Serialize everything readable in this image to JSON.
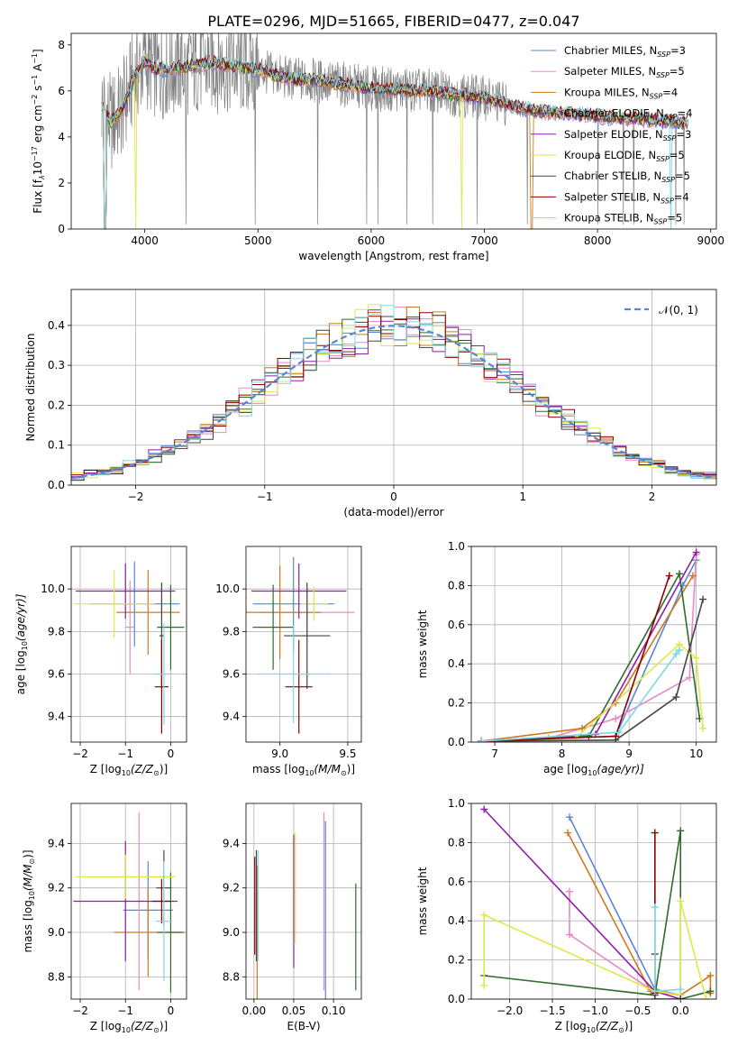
{
  "figure": {
    "title": "PLATE=0296, MJD=51665, FIBERID=0477, z=0.047"
  },
  "colors": {
    "Chabrier MILES": "#5b84d6",
    "Salpeter MILES": "#e88bc4",
    "Kroupa MILES": "#cd7a1f",
    "Chabrier ELODIE": "#2e6b2e",
    "Salpeter ELODIE": "#8e1fa8",
    "Kroupa ELODIE": "#dfe84a",
    "Chabrier STELIB": "#444444",
    "Salpeter STELIB": "#8b0000",
    "Kroupa STELIB": "#7fd8e0",
    "data": "#808080",
    "gaussian": "#5b84d6"
  },
  "chart_data": [
    {
      "id": "spectrum",
      "type": "line",
      "xlabel": "wavelength [Angstrom, rest frame]",
      "ylabel": "Flux [f",
      "xlim": [
        3350,
        9050
      ],
      "ylim": [
        0,
        8.5
      ],
      "xticks": [
        4000,
        5000,
        6000,
        7000,
        8000,
        9000
      ],
      "yticks": [
        0,
        2,
        4,
        6,
        8
      ],
      "grid": false,
      "legend_position": "top-right",
      "legend": [
        {
          "label": "Chabrier MILES, N",
          "n": "3"
        },
        {
          "label": "Salpeter MILES, N",
          "n": "5"
        },
        {
          "label": "Kroupa MILES, N",
          "n": "4"
        },
        {
          "label": "Chabrier ELODIE, N",
          "n": "4"
        },
        {
          "label": "Salpeter ELODIE, N",
          "n": "3"
        },
        {
          "label": "Kroupa ELODIE, N",
          "n": "5"
        },
        {
          "label": "Chabrier STELIB, N",
          "n": "5"
        },
        {
          "label": "Salpeter STELIB, N",
          "n": "4"
        },
        {
          "label": "Kroupa STELIB, N",
          "n": "5"
        }
      ],
      "continuum_knots": {
        "x": [
          3620,
          3700,
          3800,
          3900,
          4000,
          4100,
          4300,
          4600,
          5000,
          5300,
          5600,
          6000,
          6500,
          7000,
          7300,
          7500,
          7800,
          8100,
          8400,
          8800
        ],
        "y": [
          5.4,
          4.6,
          5.2,
          6.5,
          7.3,
          6.9,
          7.0,
          7.2,
          6.9,
          6.5,
          6.4,
          6.1,
          6.0,
          5.7,
          5.3,
          5.1,
          5.0,
          4.85,
          4.75,
          4.6
        ]
      },
      "dips": [
        {
          "x": 3650,
          "model": "all"
        },
        {
          "x": 3920,
          "model": "Kroupa ELODIE"
        },
        {
          "x": 6800,
          "model": "Kroupa ELODIE"
        },
        {
          "x": 7420,
          "model": "Kroupa MILES"
        },
        {
          "x": 8650,
          "model": "Kroupa STELIB"
        }
      ]
    },
    {
      "id": "residuals",
      "type": "histogram",
      "xlabel": "(data-model)/error",
      "ylabel": "Normed distribution",
      "xlim": [
        -2.5,
        2.5
      ],
      "ylim": [
        0,
        0.49
      ],
      "xticks": [
        -2,
        -1,
        0,
        1,
        2
      ],
      "yticks": [
        0,
        0.1,
        0.2,
        0.3,
        0.4
      ],
      "grid": true,
      "legend_position": "top-right",
      "legend": [
        "𝒩(0, 1)"
      ],
      "bins": 50
    },
    {
      "id": "Z-age",
      "type": "errorbar",
      "xlabel": "Z [log",
      "ylabel": "age  [log",
      "xlim": [
        -2.2,
        0.35
      ],
      "ylim": [
        9.28,
        10.2
      ],
      "xticks": [
        -2,
        -1,
        0
      ],
      "yticks": [
        9.4,
        9.6,
        9.8,
        10.0
      ],
      "grid": true,
      "points": [
        {
          "model": "Chabrier MILES",
          "x": -0.8,
          "xerr": 1.0,
          "y": 9.93,
          "yerr": 0.2
        },
        {
          "model": "Salpeter MILES",
          "x": -0.9,
          "xerr": 0.1,
          "y": 9.82,
          "yerr": 0.22
        },
        {
          "model": "Kroupa MILES",
          "x": -0.5,
          "xerr": 0.7,
          "y": 9.89,
          "yerr": 0.2
        },
        {
          "model": "Chabrier ELODIE",
          "x": 0.0,
          "xerr": 0.3,
          "y": 9.82,
          "yerr": 0.2
        },
        {
          "model": "Salpeter ELODIE",
          "x": -1.0,
          "xerr": 1.1,
          "y": 9.99,
          "yerr": 0.13
        },
        {
          "model": "Kroupa ELODIE",
          "x": -1.25,
          "xerr": 0.9,
          "y": 9.93,
          "yerr": 0.16
        },
        {
          "model": "Chabrier STELIB",
          "x": -0.2,
          "xerr": 0.05,
          "y": 9.78,
          "yerr": 0.25
        },
        {
          "model": "Salpeter STELIB",
          "x": -0.2,
          "xerr": 0.15,
          "y": 9.54,
          "yerr": 0.22
        },
        {
          "model": "Kroupa STELIB",
          "x": -0.15,
          "xerr": 0.2,
          "y": 9.6,
          "yerr": 0.24
        }
      ]
    },
    {
      "id": "mass-age",
      "type": "errorbar",
      "xlabel": "mass [log",
      "ylabel": "",
      "xlim": [
        8.75,
        9.6
      ],
      "ylim": [
        9.28,
        10.2
      ],
      "xticks": [
        9.0,
        9.5
      ],
      "yticks": [
        9.4,
        9.6,
        9.8,
        10.0
      ],
      "grid": true,
      "points": [
        {
          "model": "Chabrier MILES",
          "x": 9.1,
          "xerr": 0.3,
          "y": 9.93,
          "yerr": 0.22
        },
        {
          "model": "Salpeter MILES",
          "x": 9.2,
          "xerr": 0.35,
          "y": 9.89,
          "yerr": 0.12
        },
        {
          "model": "Kroupa MILES",
          "x": 9.0,
          "xerr": 0.3,
          "y": 9.89,
          "yerr": 0.22
        },
        {
          "model": "Chabrier ELODIE",
          "x": 8.95,
          "xerr": 0.15,
          "y": 9.82,
          "yerr": 0.2
        },
        {
          "model": "Salpeter ELODIE",
          "x": 9.14,
          "xerr": 0.35,
          "y": 9.99,
          "yerr": 0.13
        },
        {
          "model": "Kroupa ELODIE",
          "x": 9.25,
          "xerr": 0.1,
          "y": 9.93,
          "yerr": 0.08
        },
        {
          "model": "Chabrier STELIB",
          "x": 9.2,
          "xerr": 0.17,
          "y": 9.78,
          "yerr": 0.25
        },
        {
          "model": "Salpeter STELIB",
          "x": 9.14,
          "xerr": 0.1,
          "y": 9.54,
          "yerr": 0.22
        },
        {
          "model": "Kroupa STELIB",
          "x": 9.1,
          "xerr": 0.27,
          "y": 9.6,
          "yerr": 0.23
        }
      ]
    },
    {
      "id": "age-weight",
      "type": "line",
      "xlabel": "age  [log",
      "ylabel": "mass weight",
      "xlim": [
        6.65,
        10.3
      ],
      "ylim": [
        0,
        1.0
      ],
      "xticks": [
        7,
        8,
        9,
        10
      ],
      "yticks": [
        0.0,
        0.2,
        0.4,
        0.6,
        0.8,
        1.0
      ],
      "grid": true,
      "series": [
        {
          "model": "Chabrier MILES",
          "x": [
            6.8,
            8.8,
            9.8,
            10.0
          ],
          "y": [
            0.005,
            0.03,
            0.8,
            0.93
          ]
        },
        {
          "model": "Salpeter MILES",
          "x": [
            6.8,
            7.8,
            8.8,
            9.9,
            10.0
          ],
          "y": [
            0.005,
            0.02,
            0.12,
            0.33,
            0.96
          ]
        },
        {
          "model": "Kroupa MILES",
          "x": [
            6.8,
            8.3,
            8.8,
            9.95
          ],
          "y": [
            0.005,
            0.07,
            0.2,
            0.85
          ]
        },
        {
          "model": "Chabrier ELODIE",
          "x": [
            6.8,
            8.4,
            9.75,
            10.05
          ],
          "y": [
            0.005,
            0.03,
            0.86,
            0.12
          ]
        },
        {
          "model": "Salpeter ELODIE",
          "x": [
            6.8,
            8.5,
            10.0
          ],
          "y": [
            0.005,
            0.04,
            0.97
          ]
        },
        {
          "model": "Kroupa ELODIE",
          "x": [
            6.8,
            8.2,
            9.75,
            10.0,
            10.1
          ],
          "y": [
            0.005,
            0.02,
            0.5,
            0.43,
            0.07
          ]
        },
        {
          "model": "Chabrier STELIB",
          "x": [
            6.8,
            8.8,
            9.7,
            10.1
          ],
          "y": [
            0.005,
            0.01,
            0.23,
            0.73
          ]
        },
        {
          "model": "Salpeter STELIB",
          "x": [
            6.8,
            8.8,
            9.6
          ],
          "y": [
            0.005,
            0.03,
            0.85
          ]
        },
        {
          "model": "Kroupa STELIB",
          "x": [
            6.8,
            8.85,
            9.7,
            9.75
          ],
          "y": [
            0.005,
            0.05,
            0.45,
            0.47
          ]
        }
      ]
    },
    {
      "id": "Z-mass",
      "type": "errorbar",
      "xlabel": "Z [log",
      "ylabel": "mass [log",
      "xlim": [
        -2.2,
        0.35
      ],
      "ylim": [
        8.7,
        9.58
      ],
      "xticks": [
        -2,
        -1,
        0
      ],
      "yticks": [
        8.8,
        9.0,
        9.2,
        9.4
      ],
      "grid": true,
      "points": [
        {
          "model": "Chabrier MILES",
          "x": -0.5,
          "xerr": 0.55,
          "y": 9.1,
          "yerr": 0.22
        },
        {
          "model": "Salpeter MILES",
          "x": -0.7,
          "xerr": 0.1,
          "y": 9.14,
          "yerr": 0.4
        },
        {
          "model": "Kroupa MILES",
          "x": -0.5,
          "xerr": 0.75,
          "y": 9.0,
          "yerr": 0.2
        },
        {
          "model": "Chabrier ELODIE",
          "x": 0.0,
          "xerr": 0.3,
          "y": 9.0,
          "yerr": 0.27
        },
        {
          "model": "Salpeter ELODIE",
          "x": -1.0,
          "xerr": 1.15,
          "y": 9.14,
          "yerr": 0.27
        },
        {
          "model": "Kroupa ELODIE",
          "x": -1.0,
          "xerr": 1.1,
          "y": 9.25,
          "yerr": 0.1
        },
        {
          "model": "Chabrier STELIB",
          "x": -0.15,
          "xerr": 0.17,
          "y": 9.2,
          "yerr": 0.17
        },
        {
          "model": "Salpeter STELIB",
          "x": -0.2,
          "xerr": 0.2,
          "y": 9.14,
          "yerr": 0.1
        },
        {
          "model": "Kroupa STELIB",
          "x": -0.15,
          "xerr": 0.18,
          "y": 9.05,
          "yerr": 0.27
        }
      ]
    },
    {
      "id": "EBV-mass",
      "type": "errorbar",
      "xlabel": "E(B-V)",
      "ylabel": "",
      "xlim": [
        -0.01,
        0.135
      ],
      "ylim": [
        8.7,
        9.58
      ],
      "xticks": [
        0.0,
        0.05,
        0.1
      ],
      "yticks": [
        8.8,
        9.0,
        9.2,
        9.4
      ],
      "grid": true,
      "points": [
        {
          "model": "Chabrier MILES",
          "x": 0.09,
          "xerr": 0,
          "y": 9.1,
          "yerr": 0.4
        },
        {
          "model": "Salpeter MILES",
          "x": 0.088,
          "xerr": 0,
          "y": 9.14,
          "yerr": 0.4
        },
        {
          "model": "Kroupa MILES",
          "x": 0.004,
          "xerr": 0,
          "y": 9.0,
          "yerr": 0.3
        },
        {
          "model": "Chabrier ELODIE",
          "x": 0.128,
          "xerr": 0,
          "y": 8.98,
          "yerr": 0.24
        },
        {
          "model": "Salpeter ELODIE",
          "x": 0.05,
          "xerr": 0,
          "y": 9.14,
          "yerr": 0.3
        },
        {
          "model": "Kroupa ELODIE",
          "x": 0.052,
          "xerr": 0,
          "y": 9.2,
          "yerr": 0.25
        },
        {
          "model": "Chabrier STELIB",
          "x": 0.003,
          "xerr": 0,
          "y": 9.12,
          "yerr": 0.25
        },
        {
          "model": "Salpeter STELIB",
          "x": 0.001,
          "xerr": 0,
          "y": 9.12,
          "yerr": 0.22
        },
        {
          "model": "Kroupa STELIB",
          "x": 0.005,
          "xerr": 0,
          "y": 9.12,
          "yerr": 0.25
        }
      ]
    },
    {
      "id": "Z-weight",
      "type": "line",
      "xlabel": "Z [log",
      "ylabel": "mass weight",
      "xlim": [
        -2.45,
        0.42
      ],
      "ylim": [
        0,
        1.0
      ],
      "xticks": [
        -2.0,
        -1.5,
        -1.0,
        -0.5,
        0.0
      ],
      "yticks": [
        0.0,
        0.2,
        0.4,
        0.6,
        0.8,
        1.0
      ],
      "grid": true,
      "series": [
        {
          "model": "Chabrier MILES",
          "x": [
            -1.3,
            -0.3,
            0.0
          ],
          "y": [
            0.93,
            0.05,
            0.02
          ]
        },
        {
          "model": "Salpeter MILES",
          "x": [
            -1.3,
            -1.3,
            -0.35,
            0.0
          ],
          "y": [
            0.55,
            0.33,
            0.05,
            0.02
          ]
        },
        {
          "model": "Kroupa MILES",
          "x": [
            -1.32,
            -0.35,
            0.0,
            0.35,
            0.35
          ],
          "y": [
            0.85,
            0.04,
            0.02,
            0.12,
            0.03
          ]
        },
        {
          "model": "Chabrier ELODIE",
          "x": [
            -2.3,
            -0.3,
            0.0,
            0.0,
            0.35
          ],
          "y": [
            0.12,
            0.02,
            0.86,
            0.0,
            0.04
          ]
        },
        {
          "model": "Salpeter ELODIE",
          "x": [
            -2.3,
            -0.3,
            0.0
          ],
          "y": [
            0.97,
            0.04,
            0.0
          ]
        },
        {
          "model": "Kroupa ELODIE",
          "x": [
            -2.3,
            -2.3,
            -0.3,
            0.0,
            0.0,
            0.3
          ],
          "y": [
            0.07,
            0.43,
            0.04,
            0.02,
            0.5,
            0.0
          ]
        },
        {
          "model": "Chabrier STELIB",
          "x": [
            -0.3,
            -0.3,
            0.0
          ],
          "y": [
            0.23,
            0.0,
            0.0
          ]
        },
        {
          "model": "Salpeter STELIB",
          "x": [
            -0.3,
            -0.3
          ],
          "y": [
            0.85,
            0.03
          ]
        },
        {
          "model": "Kroupa STELIB",
          "x": [
            -0.3,
            -0.3,
            0.0
          ],
          "y": [
            0.47,
            0.04,
            0.05
          ]
        }
      ]
    }
  ],
  "labels": {
    "spectrum_ylabel_tail": "10",
    "spectrum_ylabel_units": " erg cm",
    "zsun_sub": "10",
    "zsun_frac": "(Z/Z",
    "zsun_end": ")]",
    "mass_frac": "(M/M",
    "age_frac": "(age/yr)]",
    "nsub": "SSP"
  }
}
